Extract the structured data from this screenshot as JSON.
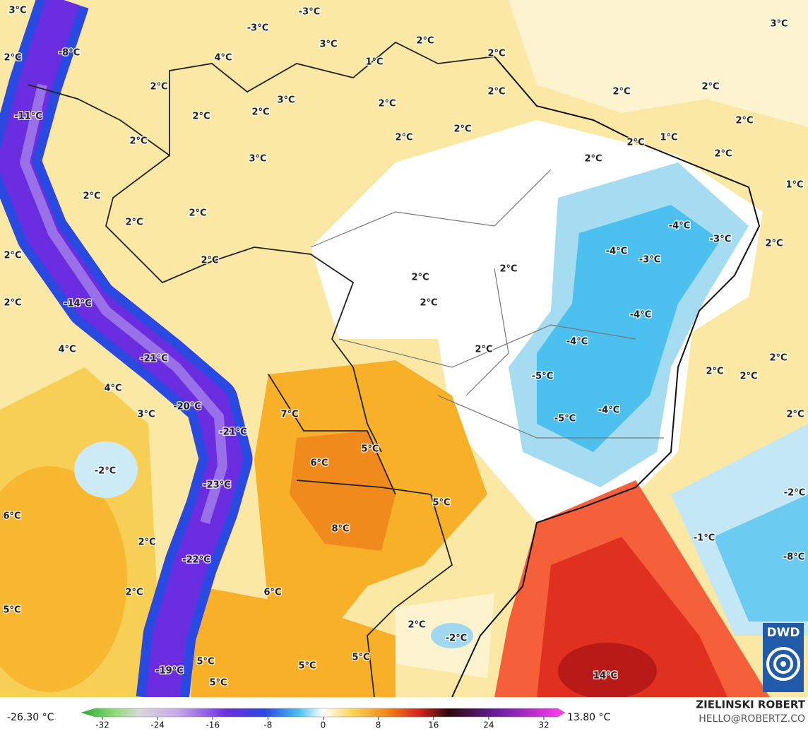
{
  "map": {
    "labels": [
      "3°C",
      "-3°C",
      "-3°C",
      "3°C",
      "2°C",
      "3°C",
      "-8°C",
      "4°C",
      "2°C",
      "1°C",
      "2°C",
      "2°C",
      "2°C",
      "2°C",
      "3°C",
      "2°C",
      "2°C",
      "-11°C",
      "2°C",
      "2°C",
      "2°C",
      "2°C",
      "2°C",
      "2°C",
      "2°C",
      "1°C",
      "2°C",
      "3°C",
      "2°C",
      "1°C",
      "2°C",
      "2°C",
      "2°C",
      "-4°C",
      "-3°C",
      "-4°C",
      "-3°C",
      "2°C",
      "2°C",
      "2°C",
      "2°C",
      "2°C",
      "2°C",
      "-14°C",
      "2°C",
      "-4°C",
      "4°C",
      "-4°C",
      "2°C",
      "-21°C",
      "2°C",
      "2°C",
      "2°C",
      "-5°C",
      "4°C",
      "-20°C",
      "3°C",
      "7°C",
      "-4°C",
      "2°C",
      "-5°C",
      "-21°C",
      "5°C",
      "6°C",
      "-2°C",
      "-23°C",
      "-2°C",
      "5°C",
      "6°C",
      "8°C",
      "2°C",
      "-1°C",
      "-8°C",
      "-22°C",
      "2°C",
      "6°C",
      "5°C",
      "2°C",
      "-2°C",
      "5°C",
      "5°C",
      "5°C",
      "-19°C",
      "14°C",
      "5°C"
    ],
    "colorbar": {
      "min_label": "-26.30 °C",
      "max_label": "13.80 °C",
      "ticks": [
        -32,
        -24,
        -16,
        -8,
        0,
        8,
        16,
        24,
        32
      ]
    },
    "credit": {
      "author": "ZIELINSKI ROBERT",
      "contact": "HELLO@ROBERTZ.CO",
      "logo": "DWD"
    }
  }
}
